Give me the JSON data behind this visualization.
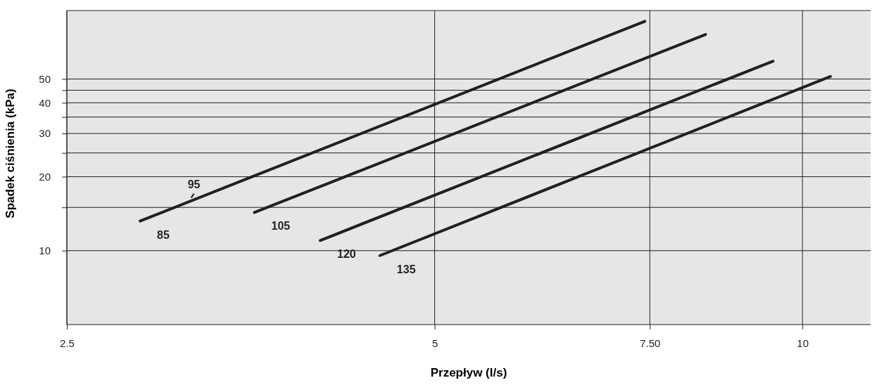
{
  "chart_data": {
    "type": "line",
    "xlabel": "Przepływ (l/s)",
    "ylabel": "Spadek ciśnienia (kPa)",
    "log": "xy",
    "grid": true,
    "marker": "none",
    "line_style": "solid",
    "xlim": [
      2.5,
      11.37
    ],
    "xticks": [
      2.5,
      5,
      {
        "value": 7.5,
        "label": "7.50"
      },
      10
    ],
    "ylim": [
      5,
      95
    ],
    "yticks": [
      10,
      {
        "value": 15,
        "label": null
      },
      20,
      {
        "value": 25,
        "label": null
      },
      30,
      {
        "value": 35,
        "label": null
      },
      40,
      {
        "value": 45,
        "label": null
      },
      50
    ],
    "series": [
      {
        "name": "85",
        "color": "#231f20",
        "x": [
          2.87,
          7.43
        ],
        "values": [
          13.2,
          85.9
        ]
      },
      {
        "name": "105",
        "color": "#231f20",
        "x": [
          3.56,
          8.33
        ],
        "values": [
          14.3,
          75.9
        ]
      },
      {
        "name": "120",
        "color": "#231f20",
        "x": [
          4.03,
          9.46
        ],
        "values": [
          11.0,
          59.1
        ]
      },
      {
        "name": "135",
        "color": "#231f20",
        "x": [
          4.51,
          10.54
        ],
        "values": [
          9.55,
          51.2
        ]
      }
    ],
    "annotations": [
      {
        "text": "95",
        "x": 3.16,
        "y": 16.4
      }
    ]
  }
}
